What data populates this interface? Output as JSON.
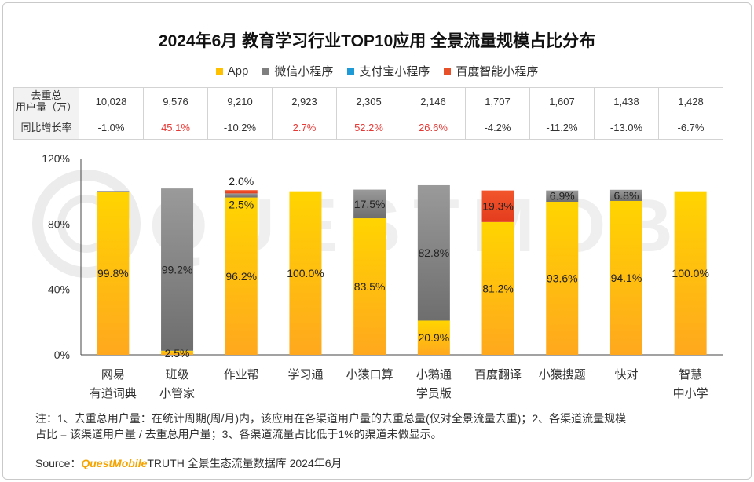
{
  "title": "2024年6月 教育学习行业TOP10应用 全景流量规模占比分布",
  "legend": [
    {
      "label": "App",
      "color": "#FFC000"
    },
    {
      "label": "微信小程序",
      "color": "#7F7F7F"
    },
    {
      "label": "支付宝小程序",
      "color": "#1E9BD7"
    },
    {
      "label": "百度智能小程序",
      "color": "#E8502A"
    }
  ],
  "table": {
    "row1_label": "去重总用户量（万）",
    "row1_label_line1": "去重总",
    "row1_label_line2": "用户量（万）",
    "row2_label": "同比增长率",
    "users": [
      "10,028",
      "9,576",
      "9,210",
      "2,923",
      "2,305",
      "2,146",
      "1,707",
      "1,607",
      "1,438",
      "1,428"
    ],
    "growth": [
      "-1.0%",
      "45.1%",
      "-10.2%",
      "2.7%",
      "52.2%",
      "26.6%",
      "-4.2%",
      "-11.2%",
      "-13.0%",
      "-6.7%"
    ]
  },
  "chart_data": {
    "type": "bar",
    "stacked": true,
    "categories": [
      "网易有道词典",
      "班级小管家",
      "作业帮",
      "学习通",
      "小猿口算",
      "小鹅通学员版",
      "百度翻译",
      "小猿搜题",
      "快对",
      "智慧中小学"
    ],
    "category_lines": [
      [
        "网易",
        "有道词典"
      ],
      [
        "班级",
        "小管家"
      ],
      [
        "作业帮"
      ],
      [
        "学习通"
      ],
      [
        "小猿口算"
      ],
      [
        "小鹅通",
        "学员版"
      ],
      [
        "百度翻译"
      ],
      [
        "小猿搜题"
      ],
      [
        "快对"
      ],
      [
        "智慧",
        "中小学"
      ]
    ],
    "series": [
      {
        "name": "App",
        "values": [
          99.8,
          2.5,
          96.2,
          100.0,
          83.5,
          20.9,
          81.2,
          93.6,
          94.1,
          100.0
        ]
      },
      {
        "name": "微信小程序",
        "values": [
          0.4,
          99.2,
          2.5,
          0,
          17.5,
          82.8,
          0,
          6.9,
          6.8,
          0
        ]
      },
      {
        "name": "支付宝小程序",
        "values": [
          0,
          0,
          0,
          0,
          0,
          0,
          0,
          0,
          0,
          0
        ]
      },
      {
        "name": "百度智能小程序",
        "values": [
          0,
          0,
          2.0,
          0,
          0,
          0,
          19.3,
          0,
          0,
          0
        ]
      }
    ],
    "data_labels": [
      {
        "App": "99.8%"
      },
      {
        "App": "2.5%",
        "微信小程序": "99.2%"
      },
      {
        "App": "96.2%",
        "微信小程序": "2.5%",
        "百度智能小程序": "2.0%"
      },
      {
        "App": "100.0%"
      },
      {
        "App": "83.5%",
        "微信小程序": "17.5%"
      },
      {
        "App": "20.9%",
        "微信小程序": "82.8%"
      },
      {
        "App": "81.2%",
        "百度智能小程序": "19.3%"
      },
      {
        "App": "93.6%",
        "微信小程序": "6.9%"
      },
      {
        "App": "94.1%",
        "微信小程序": "6.8%"
      },
      {
        "App": "100.0%"
      }
    ],
    "y_ticks": [
      "0%",
      "40%",
      "80%",
      "120%"
    ],
    "ylim": [
      0,
      120
    ],
    "grid": false,
    "legend_position": "top"
  },
  "note_line1": "注：1、去重总用户量：在统计周期(周/月)内，该应用在各渠道用户量的去重总量(仅对全景流量去重)；2、各渠道流量规模",
  "note_line2": "占比 = 该渠道用户量 / 去重总用户量；3、各渠道流量占比低于1%的渠道未做显示。",
  "source_prefix": "Source：",
  "source_brand": "QuestMobile",
  "source_suffix": "TRUTH 全景生态流量数据库 2024年6月",
  "watermark": "QUESTMOBILE"
}
